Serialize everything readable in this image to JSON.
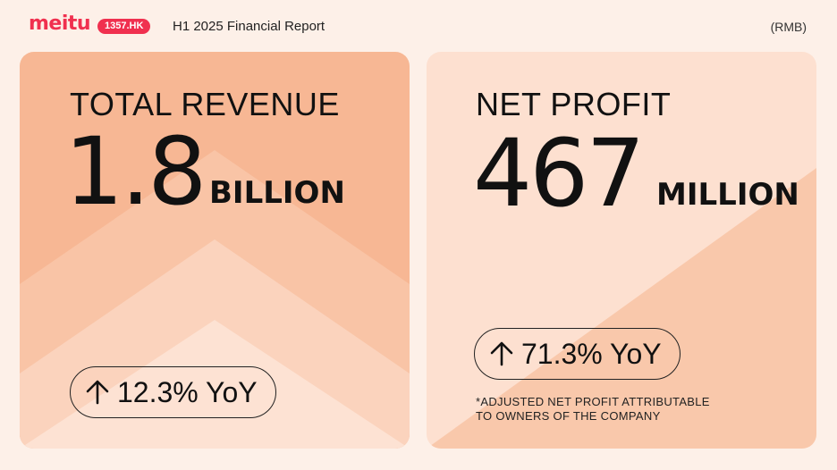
{
  "header": {
    "logo": "meitu",
    "ticker": "1357.HK",
    "title": "H1 2025 Financial Report",
    "currency": "(RMB)"
  },
  "revenue": {
    "label": "TOTAL REVENUE",
    "value": "1.8",
    "unit": "BILLION",
    "yoy": "12.3% YoY"
  },
  "profit": {
    "label": "NET PROFIT",
    "value": "467",
    "unit": "MILLION",
    "yoy": "71.3% YoY",
    "note_line1": "*ADJUSTED NET PROFIT ATTRIBUTABLE",
    "note_line2": "TO OWNERS OF THE COMPANY"
  },
  "colors": {
    "brand": "#f0304f",
    "left_card": "#f7b794",
    "right_card": "#fde0d0"
  },
  "icons": [
    "arrow-up-icon"
  ]
}
